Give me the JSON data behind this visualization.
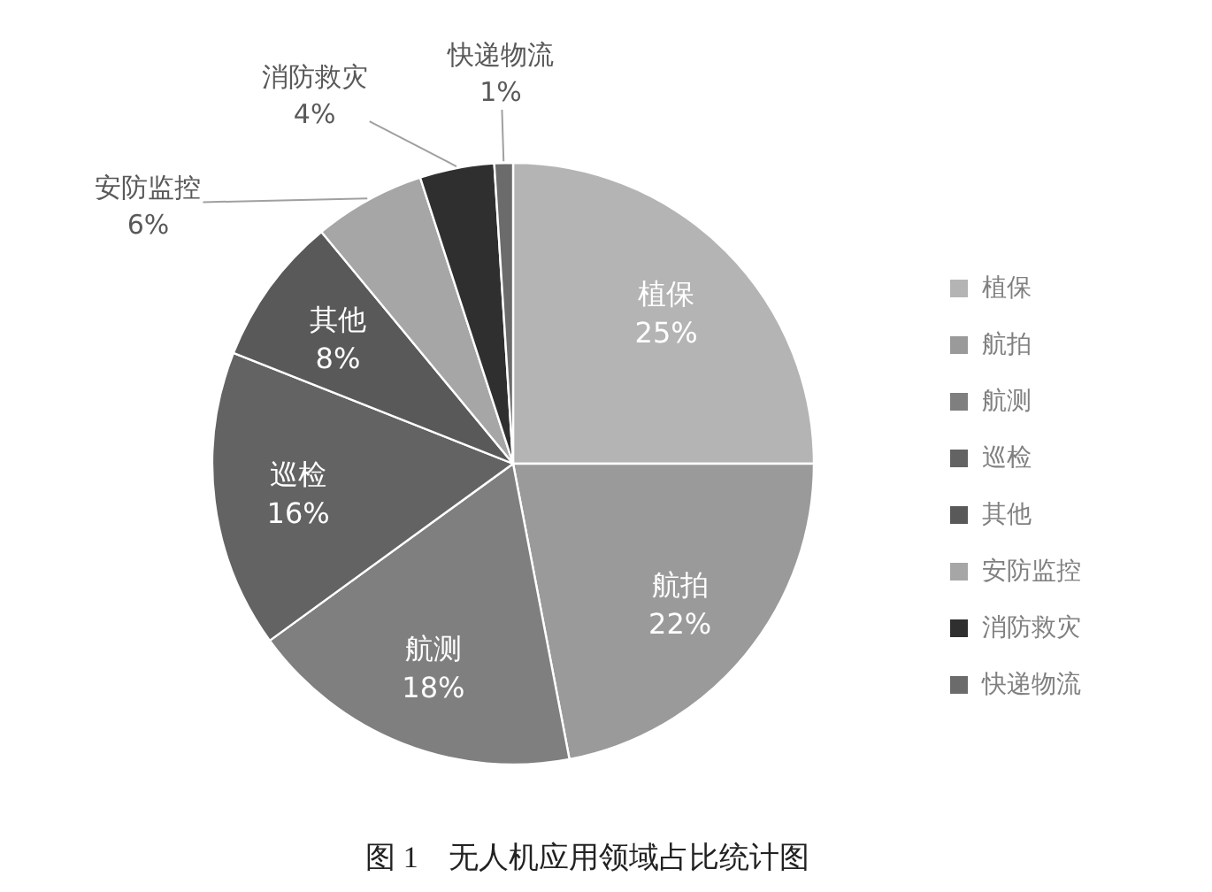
{
  "chart_data": {
    "type": "pie",
    "title": "图 1　无人机应用领域占比统计图",
    "categories": [
      "植保",
      "航拍",
      "航测",
      "巡检",
      "其他",
      "安防监控",
      "消防救灾",
      "快递物流"
    ],
    "values": [
      25,
      22,
      18,
      16,
      8,
      6,
      4,
      1
    ],
    "value_labels": [
      "25%",
      "22%",
      "18%",
      "16%",
      "8%",
      "6%",
      "4%",
      "1%"
    ],
    "colors": [
      "#b4b4b4",
      "#9a9a9a",
      "#7f7f7f",
      "#636363",
      "#595959",
      "#a6a6a6",
      "#2f2f2f",
      "#6b6b6b"
    ],
    "legend": "right"
  }
}
